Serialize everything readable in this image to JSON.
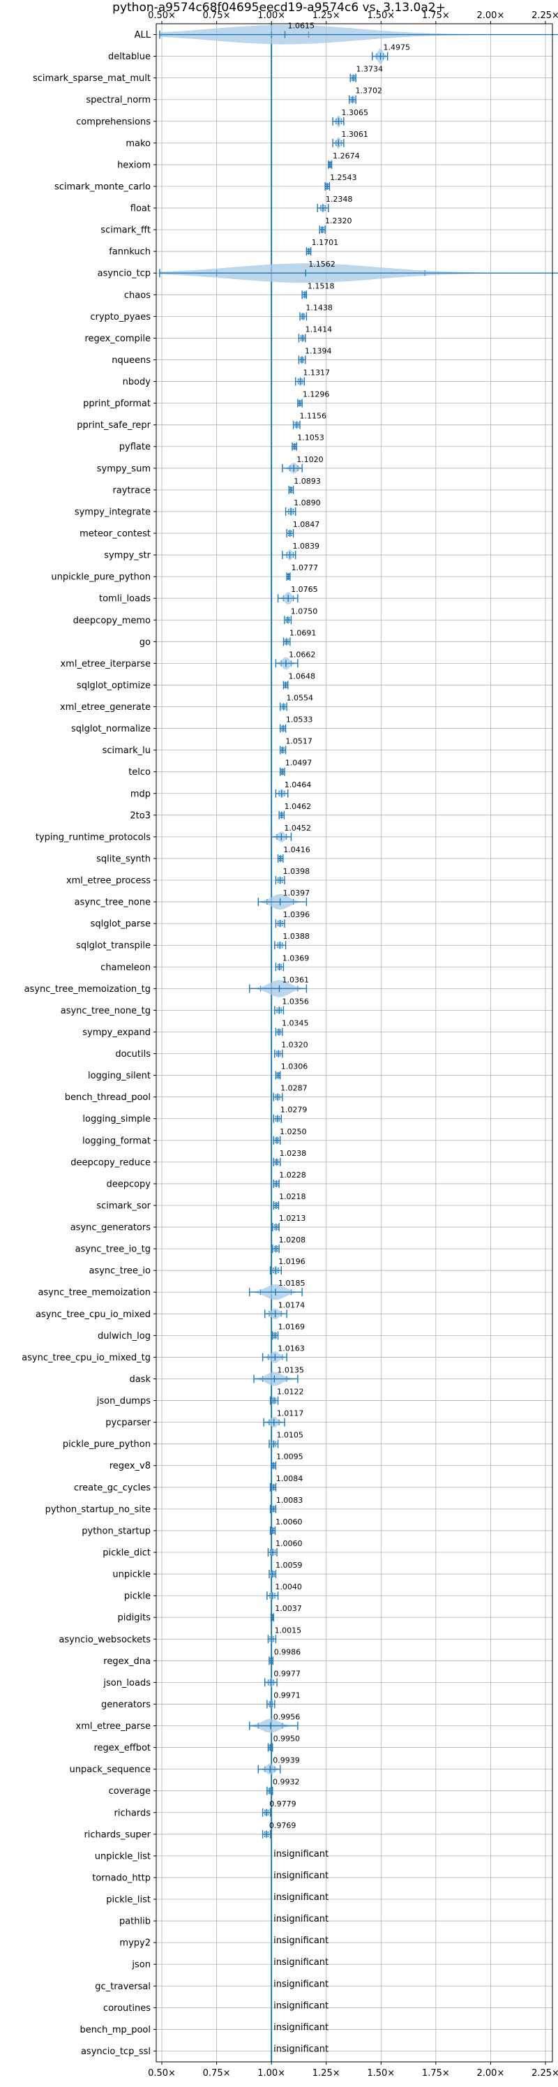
{
  "chart_data": {
    "type": "violin",
    "title": "python-a9574c68f04695eecd19-a9574c6 vs. 3.13.0a2+",
    "xlim": [
      0.4,
      2.35
    ],
    "xticks": [
      0.5,
      0.75,
      1.0,
      1.25,
      1.5,
      1.75,
      2.0,
      2.25
    ],
    "xtick_labels": [
      "0.50×",
      "0.75×",
      "1.00×",
      "1.25×",
      "1.50×",
      "1.75×",
      "2.00×",
      "2.25×"
    ],
    "reference_line": 1.0,
    "grid": true,
    "colors": {
      "violin": "#a6c8e6",
      "whisker": "#1f77b4",
      "reference": "#1f77b4",
      "grid": "#b0b0b0"
    },
    "benchmarks": [
      {
        "name": "ALL",
        "value": 1.0615,
        "label": "1.0615",
        "min": 0.49,
        "max": 2.35,
        "q1": 1.0,
        "q3": 1.17,
        "spread": 0.03
      },
      {
        "name": "deltablue",
        "value": 1.4975,
        "label": "1.4975",
        "min": 1.46,
        "max": 1.53,
        "q1": 1.48,
        "q3": 1.51,
        "spread": 0.02
      },
      {
        "name": "scimark_sparse_mat_mult",
        "value": 1.3734,
        "label": "1.3734",
        "min": 1.36,
        "max": 1.385,
        "q1": 1.367,
        "q3": 1.38,
        "spread": 0.01
      },
      {
        "name": "spectral_norm",
        "value": 1.3702,
        "label": "1.3702",
        "min": 1.355,
        "max": 1.385,
        "q1": 1.363,
        "q3": 1.377,
        "spread": 0.01
      },
      {
        "name": "comprehensions",
        "value": 1.3065,
        "label": "1.3065",
        "min": 1.28,
        "max": 1.33,
        "q1": 1.295,
        "q3": 1.32,
        "spread": 0.015
      },
      {
        "name": "mako",
        "value": 1.3061,
        "label": "1.3061",
        "min": 1.28,
        "max": 1.33,
        "q1": 1.295,
        "q3": 1.32,
        "spread": 0.015
      },
      {
        "name": "hexiom",
        "value": 1.2674,
        "label": "1.2674",
        "min": 1.26,
        "max": 1.275,
        "q1": 1.263,
        "q3": 1.272,
        "spread": 0.008
      },
      {
        "name": "scimark_monte_carlo",
        "value": 1.2543,
        "label": "1.2543",
        "min": 1.245,
        "max": 1.265,
        "q1": 1.25,
        "q3": 1.26,
        "spread": 0.008
      },
      {
        "name": "float",
        "value": 1.2348,
        "label": "1.2348",
        "min": 1.21,
        "max": 1.26,
        "q1": 1.225,
        "q3": 1.245,
        "spread": 0.012
      },
      {
        "name": "scimark_fft",
        "value": 1.232,
        "label": "1.2320",
        "min": 1.22,
        "max": 1.245,
        "q1": 1.227,
        "q3": 1.238,
        "spread": 0.01
      },
      {
        "name": "fannkuch",
        "value": 1.1701,
        "label": "1.1701",
        "min": 1.16,
        "max": 1.18,
        "q1": 1.165,
        "q3": 1.175,
        "spread": 0.008
      },
      {
        "name": "asyncio_tcp",
        "value": 1.1562,
        "label": "1.1562",
        "min": 0.49,
        "max": 2.35,
        "q1": 0.75,
        "q3": 1.7,
        "spread": 0.04
      },
      {
        "name": "chaos",
        "value": 1.1518,
        "label": "1.1518",
        "min": 1.14,
        "max": 1.16,
        "q1": 1.146,
        "q3": 1.157,
        "spread": 0.008
      },
      {
        "name": "crypto_pyaes",
        "value": 1.1438,
        "label": "1.1438",
        "min": 1.13,
        "max": 1.16,
        "q1": 1.137,
        "q3": 1.15,
        "spread": 0.01
      },
      {
        "name": "regex_compile",
        "value": 1.1414,
        "label": "1.1414",
        "min": 1.125,
        "max": 1.155,
        "q1": 1.134,
        "q3": 1.148,
        "spread": 0.01
      },
      {
        "name": "nqueens",
        "value": 1.1394,
        "label": "1.1394",
        "min": 1.125,
        "max": 1.155,
        "q1": 1.133,
        "q3": 1.146,
        "spread": 0.01
      },
      {
        "name": "nbody",
        "value": 1.1317,
        "label": "1.1317",
        "min": 1.11,
        "max": 1.15,
        "q1": 1.122,
        "q3": 1.14,
        "spread": 0.012
      },
      {
        "name": "pprint_pformat",
        "value": 1.1296,
        "label": "1.1296",
        "min": 1.12,
        "max": 1.14,
        "q1": 1.125,
        "q3": 1.135,
        "spread": 0.008
      },
      {
        "name": "pprint_safe_repr",
        "value": 1.1156,
        "label": "1.1156",
        "min": 1.1,
        "max": 1.13,
        "q1": 1.108,
        "q3": 1.123,
        "spread": 0.01
      },
      {
        "name": "pyflate",
        "value": 1.1053,
        "label": "1.1053",
        "min": 1.095,
        "max": 1.115,
        "q1": 1.1,
        "q3": 1.11,
        "spread": 0.008
      },
      {
        "name": "sympy_sum",
        "value": 1.102,
        "label": "1.1020",
        "min": 1.05,
        "max": 1.14,
        "q1": 1.085,
        "q3": 1.12,
        "spread": 0.014
      },
      {
        "name": "raytrace",
        "value": 1.0893,
        "label": "1.0893",
        "min": 1.08,
        "max": 1.1,
        "q1": 1.085,
        "q3": 1.095,
        "spread": 0.008
      },
      {
        "name": "sympy_integrate",
        "value": 1.089,
        "label": "1.0890",
        "min": 1.065,
        "max": 1.11,
        "q1": 1.078,
        "q3": 1.1,
        "spread": 0.012
      },
      {
        "name": "meteor_contest",
        "value": 1.0847,
        "label": "1.0847",
        "min": 1.07,
        "max": 1.1,
        "q1": 1.078,
        "q3": 1.092,
        "spread": 0.01
      },
      {
        "name": "sympy_str",
        "value": 1.0839,
        "label": "1.0839",
        "min": 1.05,
        "max": 1.11,
        "q1": 1.07,
        "q3": 1.1,
        "spread": 0.014
      },
      {
        "name": "unpickle_pure_python",
        "value": 1.0777,
        "label": "1.0777",
        "min": 1.07,
        "max": 1.085,
        "q1": 1.074,
        "q3": 1.081,
        "spread": 0.007
      },
      {
        "name": "tomli_loads",
        "value": 1.0765,
        "label": "1.0765",
        "min": 1.03,
        "max": 1.12,
        "q1": 1.055,
        "q3": 1.1,
        "spread": 0.016
      },
      {
        "name": "deepcopy_memo",
        "value": 1.075,
        "label": "1.0750",
        "min": 1.06,
        "max": 1.09,
        "q1": 1.068,
        "q3": 1.082,
        "spread": 0.01
      },
      {
        "name": "go",
        "value": 1.0691,
        "label": "1.0691",
        "min": 1.055,
        "max": 1.085,
        "q1": 1.062,
        "q3": 1.077,
        "spread": 0.01
      },
      {
        "name": "xml_etree_iterparse",
        "value": 1.0662,
        "label": "1.0662",
        "min": 1.02,
        "max": 1.12,
        "q1": 1.045,
        "q3": 1.09,
        "spread": 0.016
      },
      {
        "name": "sqlglot_optimize",
        "value": 1.0648,
        "label": "1.0648",
        "min": 1.055,
        "max": 1.075,
        "q1": 1.06,
        "q3": 1.07,
        "spread": 0.008
      },
      {
        "name": "xml_etree_generate",
        "value": 1.0554,
        "label": "1.0554",
        "min": 1.04,
        "max": 1.07,
        "q1": 1.048,
        "q3": 1.062,
        "spread": 0.01
      },
      {
        "name": "sqlglot_normalize",
        "value": 1.0533,
        "label": "1.0533",
        "min": 1.04,
        "max": 1.065,
        "q1": 1.047,
        "q3": 1.06,
        "spread": 0.01
      },
      {
        "name": "scimark_lu",
        "value": 1.0517,
        "label": "1.0517",
        "min": 1.04,
        "max": 1.065,
        "q1": 1.046,
        "q3": 1.058,
        "spread": 0.008
      },
      {
        "name": "telco",
        "value": 1.0497,
        "label": "1.0497",
        "min": 1.04,
        "max": 1.06,
        "q1": 1.045,
        "q3": 1.055,
        "spread": 0.008
      },
      {
        "name": "mdp",
        "value": 1.0464,
        "label": "1.0464",
        "min": 1.02,
        "max": 1.075,
        "q1": 1.035,
        "q3": 1.06,
        "spread": 0.012
      },
      {
        "name": "2to3",
        "value": 1.0462,
        "label": "1.0462",
        "min": 1.035,
        "max": 1.058,
        "q1": 1.041,
        "q3": 1.052,
        "spread": 0.008
      },
      {
        "name": "typing_runtime_protocols",
        "value": 1.0452,
        "label": "1.0452",
        "min": 1.0,
        "max": 1.09,
        "q1": 1.025,
        "q3": 1.068,
        "spread": 0.014
      },
      {
        "name": "sqlite_synth",
        "value": 1.0416,
        "label": "1.0416",
        "min": 1.03,
        "max": 1.053,
        "q1": 1.036,
        "q3": 1.047,
        "spread": 0.008
      },
      {
        "name": "xml_etree_process",
        "value": 1.0398,
        "label": "1.0398",
        "min": 1.02,
        "max": 1.06,
        "q1": 1.03,
        "q3": 1.05,
        "spread": 0.01
      },
      {
        "name": "async_tree_none",
        "value": 1.0397,
        "label": "1.0397",
        "min": 0.94,
        "max": 1.16,
        "q1": 0.98,
        "q3": 1.1,
        "spread": 0.02
      },
      {
        "name": "sqlglot_parse",
        "value": 1.0396,
        "label": "1.0396",
        "min": 1.02,
        "max": 1.06,
        "q1": 1.03,
        "q3": 1.05,
        "spread": 0.01
      },
      {
        "name": "sqlglot_transpile",
        "value": 1.0388,
        "label": "1.0388",
        "min": 1.015,
        "max": 1.065,
        "q1": 1.028,
        "q3": 1.05,
        "spread": 0.01
      },
      {
        "name": "chameleon",
        "value": 1.0369,
        "label": "1.0369",
        "min": 1.02,
        "max": 1.055,
        "q1": 1.03,
        "q3": 1.045,
        "spread": 0.01
      },
      {
        "name": "async_tree_memoization_tg",
        "value": 1.0361,
        "label": "1.0361",
        "min": 0.9,
        "max": 1.16,
        "q1": 0.95,
        "q3": 1.12,
        "spread": 0.022
      },
      {
        "name": "async_tree_none_tg",
        "value": 1.0356,
        "label": "1.0356",
        "min": 1.015,
        "max": 1.055,
        "q1": 1.025,
        "q3": 1.045,
        "spread": 0.01
      },
      {
        "name": "sympy_expand",
        "value": 1.0345,
        "label": "1.0345",
        "min": 1.02,
        "max": 1.05,
        "q1": 1.028,
        "q3": 1.042,
        "spread": 0.01
      },
      {
        "name": "docutils",
        "value": 1.032,
        "label": "1.0320",
        "min": 1.015,
        "max": 1.05,
        "q1": 1.024,
        "q3": 1.04,
        "spread": 0.01
      },
      {
        "name": "logging_silent",
        "value": 1.0306,
        "label": "1.0306",
        "min": 1.02,
        "max": 1.04,
        "q1": 1.025,
        "q3": 1.036,
        "spread": 0.007
      },
      {
        "name": "bench_thread_pool",
        "value": 1.0287,
        "label": "1.0287",
        "min": 1.01,
        "max": 1.05,
        "q1": 1.02,
        "q3": 1.038,
        "spread": 0.01
      },
      {
        "name": "logging_simple",
        "value": 1.0279,
        "label": "1.0279",
        "min": 1.01,
        "max": 1.045,
        "q1": 1.02,
        "q3": 1.036,
        "spread": 0.01
      },
      {
        "name": "logging_format",
        "value": 1.025,
        "label": "1.0250",
        "min": 1.01,
        "max": 1.04,
        "q1": 1.018,
        "q3": 1.032,
        "spread": 0.01
      },
      {
        "name": "deepcopy_reduce",
        "value": 1.0238,
        "label": "1.0238",
        "min": 1.01,
        "max": 1.04,
        "q1": 1.017,
        "q3": 1.03,
        "spread": 0.01
      },
      {
        "name": "deepcopy",
        "value": 1.0228,
        "label": "1.0228",
        "min": 1.01,
        "max": 1.035,
        "q1": 1.016,
        "q3": 1.03,
        "spread": 0.01
      },
      {
        "name": "scimark_sor",
        "value": 1.0218,
        "label": "1.0218",
        "min": 1.01,
        "max": 1.033,
        "q1": 1.016,
        "q3": 1.028,
        "spread": 0.008
      },
      {
        "name": "async_generators",
        "value": 1.0213,
        "label": "1.0213",
        "min": 1.005,
        "max": 1.035,
        "q1": 1.013,
        "q3": 1.03,
        "spread": 0.01
      },
      {
        "name": "async_tree_io_tg",
        "value": 1.0208,
        "label": "1.0208",
        "min": 1.005,
        "max": 1.035,
        "q1": 1.013,
        "q3": 1.028,
        "spread": 0.01
      },
      {
        "name": "async_tree_io",
        "value": 1.0196,
        "label": "1.0196",
        "min": 0.995,
        "max": 1.045,
        "q1": 1.008,
        "q3": 1.032,
        "spread": 0.012
      },
      {
        "name": "async_tree_memoization",
        "value": 1.0185,
        "label": "1.0185",
        "min": 0.9,
        "max": 1.14,
        "q1": 0.95,
        "q3": 1.09,
        "spread": 0.02
      },
      {
        "name": "async_tree_cpu_io_mixed",
        "value": 1.0174,
        "label": "1.0174",
        "min": 0.97,
        "max": 1.07,
        "q1": 0.99,
        "q3": 1.045,
        "spread": 0.014
      },
      {
        "name": "dulwich_log",
        "value": 1.0169,
        "label": "1.0169",
        "min": 1.005,
        "max": 1.03,
        "q1": 1.011,
        "q3": 1.023,
        "spread": 0.008
      },
      {
        "name": "async_tree_cpu_io_mixed_tg",
        "value": 1.0163,
        "label": "1.0163",
        "min": 0.96,
        "max": 1.07,
        "q1": 0.985,
        "q3": 1.05,
        "spread": 0.015
      },
      {
        "name": "dask",
        "value": 1.0135,
        "label": "1.0135",
        "min": 0.92,
        "max": 1.12,
        "q1": 0.96,
        "q3": 1.07,
        "spread": 0.018
      },
      {
        "name": "json_dumps",
        "value": 1.0122,
        "label": "1.0122",
        "min": 0.995,
        "max": 1.03,
        "q1": 1.004,
        "q3": 1.02,
        "spread": 0.01
      },
      {
        "name": "pycparser",
        "value": 1.0117,
        "label": "1.0117",
        "min": 0.965,
        "max": 1.06,
        "q1": 0.99,
        "q3": 1.035,
        "spread": 0.014
      },
      {
        "name": "pickle_pure_python",
        "value": 1.0105,
        "label": "1.0105",
        "min": 0.99,
        "max": 1.03,
        "q1": 1.0,
        "q3": 1.02,
        "spread": 0.01
      },
      {
        "name": "regex_v8",
        "value": 1.0095,
        "label": "1.0095",
        "min": 1.0,
        "max": 1.02,
        "q1": 1.005,
        "q3": 1.015,
        "spread": 0.007
      },
      {
        "name": "create_gc_cycles",
        "value": 1.0084,
        "label": "1.0084",
        "min": 0.995,
        "max": 1.02,
        "q1": 1.002,
        "q3": 1.015,
        "spread": 0.008
      },
      {
        "name": "python_startup_no_site",
        "value": 1.0083,
        "label": "1.0083",
        "min": 0.995,
        "max": 1.02,
        "q1": 1.002,
        "q3": 1.015,
        "spread": 0.008
      },
      {
        "name": "python_startup",
        "value": 1.006,
        "label": "1.0060",
        "min": 0.995,
        "max": 1.017,
        "q1": 1.0,
        "q3": 1.012,
        "spread": 0.008
      },
      {
        "name": "pickle_dict",
        "value": 1.006,
        "label": "1.0060",
        "min": 0.985,
        "max": 1.025,
        "q1": 0.995,
        "q3": 1.017,
        "spread": 0.01
      },
      {
        "name": "unpickle",
        "value": 1.0059,
        "label": "1.0059",
        "min": 0.99,
        "max": 1.02,
        "q1": 0.998,
        "q3": 1.014,
        "spread": 0.01
      },
      {
        "name": "pickle",
        "value": 1.004,
        "label": "1.0040",
        "min": 0.98,
        "max": 1.03,
        "q1": 0.993,
        "q3": 1.016,
        "spread": 0.01
      },
      {
        "name": "pidigits",
        "value": 1.0037,
        "label": "1.0037",
        "min": 0.998,
        "max": 1.01,
        "q1": 1.001,
        "q3": 1.007,
        "spread": 0.006
      },
      {
        "name": "asyncio_websockets",
        "value": 1.0015,
        "label": "1.0015",
        "min": 0.985,
        "max": 1.02,
        "q1": 0.993,
        "q3": 1.01,
        "spread": 0.01
      },
      {
        "name": "regex_dna",
        "value": 0.9986,
        "label": "0.9986",
        "min": 0.99,
        "max": 1.007,
        "q1": 0.994,
        "q3": 1.003,
        "spread": 0.007
      },
      {
        "name": "json_loads",
        "value": 0.9977,
        "label": "0.9977",
        "min": 0.97,
        "max": 1.025,
        "q1": 0.985,
        "q3": 1.01,
        "spread": 0.012
      },
      {
        "name": "generators",
        "value": 0.9971,
        "label": "0.9971",
        "min": 0.98,
        "max": 1.015,
        "q1": 0.99,
        "q3": 1.005,
        "spread": 0.01
      },
      {
        "name": "xml_etree_parse",
        "value": 0.9956,
        "label": "0.9956",
        "min": 0.9,
        "max": 1.12,
        "q1": 0.94,
        "q3": 1.05,
        "spread": 0.018
      },
      {
        "name": "regex_effbot",
        "value": 0.995,
        "label": "0.9950",
        "min": 0.985,
        "max": 1.005,
        "q1": 0.99,
        "q3": 1.0,
        "spread": 0.007
      },
      {
        "name": "unpack_sequence",
        "value": 0.9939,
        "label": "0.9939",
        "min": 0.94,
        "max": 1.04,
        "q1": 0.97,
        "q3": 1.015,
        "spread": 0.014
      },
      {
        "name": "coverage",
        "value": 0.9932,
        "label": "0.9932",
        "min": 0.98,
        "max": 1.005,
        "q1": 0.987,
        "q3": 0.999,
        "spread": 0.008
      },
      {
        "name": "richards",
        "value": 0.9779,
        "label": "0.9779",
        "min": 0.96,
        "max": 0.995,
        "q1": 0.97,
        "q3": 0.986,
        "spread": 0.01
      },
      {
        "name": "richards_super",
        "value": 0.9769,
        "label": "0.9769",
        "min": 0.96,
        "max": 0.995,
        "q1": 0.969,
        "q3": 0.985,
        "spread": 0.01
      },
      {
        "name": "unpickle_list",
        "insignificant": true,
        "label": "insignificant"
      },
      {
        "name": "tornado_http",
        "insignificant": true,
        "label": "insignificant"
      },
      {
        "name": "pickle_list",
        "insignificant": true,
        "label": "insignificant"
      },
      {
        "name": "pathlib",
        "insignificant": true,
        "label": "insignificant"
      },
      {
        "name": "mypy2",
        "insignificant": true,
        "label": "insignificant"
      },
      {
        "name": "json",
        "insignificant": true,
        "label": "insignificant"
      },
      {
        "name": "gc_traversal",
        "insignificant": true,
        "label": "insignificant"
      },
      {
        "name": "coroutines",
        "insignificant": true,
        "label": "insignificant"
      },
      {
        "name": "bench_mp_pool",
        "insignificant": true,
        "label": "insignificant"
      },
      {
        "name": "asyncio_tcp_ssl",
        "insignificant": true,
        "label": "insignificant"
      }
    ]
  }
}
